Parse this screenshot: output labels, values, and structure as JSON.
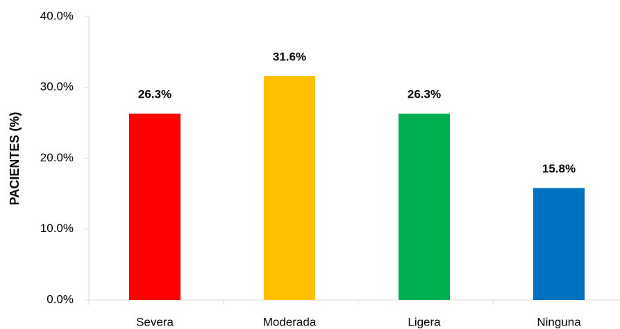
{
  "chart_data": {
    "type": "bar",
    "y_label": "PACIENTES (%)",
    "categories": [
      "Severa",
      "Moderada",
      "Ligera",
      "Ninguna"
    ],
    "values": [
      26.3,
      31.6,
      26.3,
      15.8
    ],
    "value_labels": [
      "26.3%",
      "31.6%",
      "26.3%",
      "15.8%"
    ],
    "colors": [
      "#ff0000",
      "#ffc000",
      "#00b050",
      "#0070c0"
    ],
    "ylim": [
      0,
      40
    ],
    "yticks": [
      {
        "value": 0,
        "label": "0.0%"
      },
      {
        "value": 10,
        "label": "10.0%"
      },
      {
        "value": 20,
        "label": "20.0%"
      },
      {
        "value": 30,
        "label": "30.0%"
      },
      {
        "value": 40,
        "label": "40.0%"
      }
    ],
    "grid": false
  }
}
